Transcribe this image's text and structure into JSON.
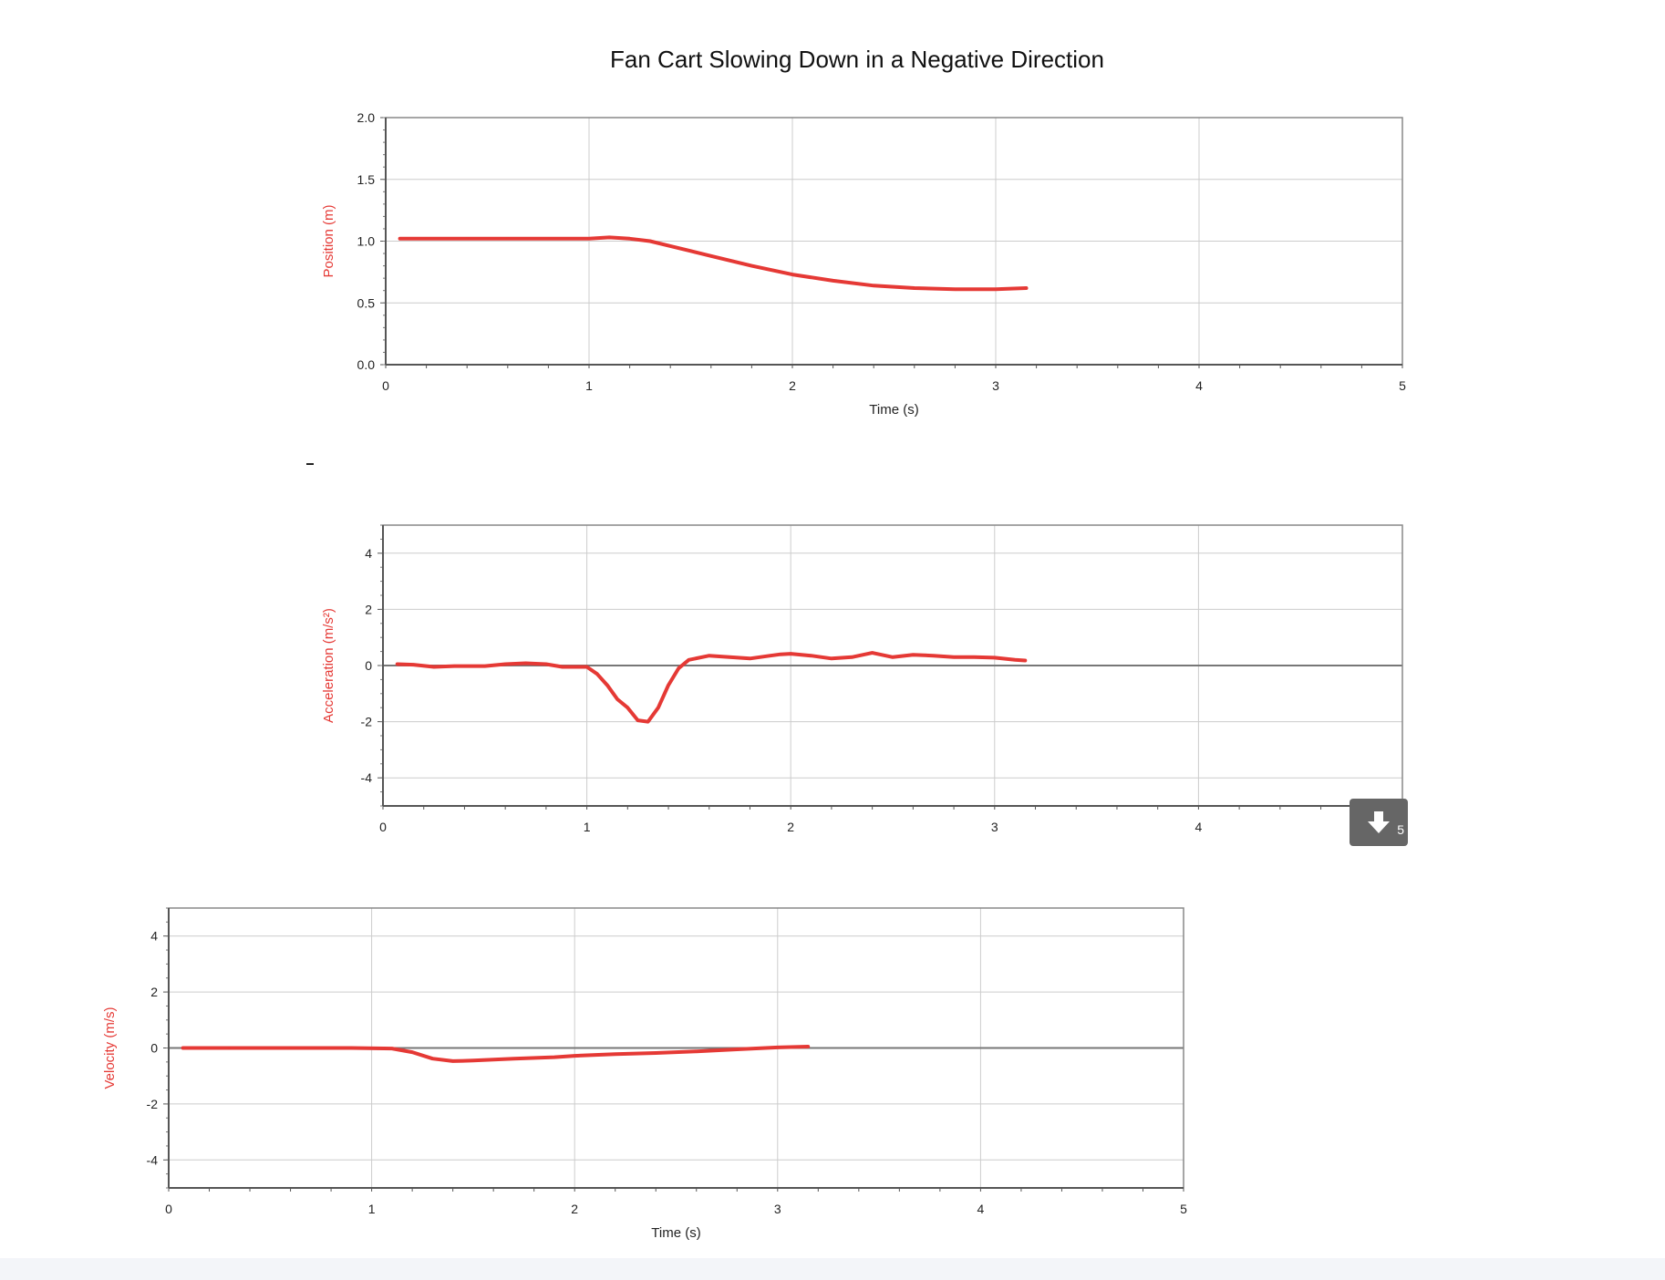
{
  "title": "Fan Cart Slowing Down in a Negative Direction",
  "colors": {
    "series": "#e53935",
    "ylabel": "#e53935",
    "grid": "#cccccc",
    "zero_line": "#777777"
  },
  "download_button": {
    "icon": "download-arrow-icon",
    "label": "5"
  },
  "chart_data": [
    {
      "type": "line",
      "name": "position",
      "title": "",
      "ylabel": "Position (m)",
      "xlabel": "Time (s)",
      "xlim": [
        0,
        5
      ],
      "ylim": [
        0,
        2
      ],
      "x_ticks": [
        "0",
        "1",
        "2",
        "3",
        "4",
        "5"
      ],
      "y_ticks": [
        "0.0",
        "0.5",
        "1.0",
        "1.5",
        "2.0"
      ],
      "y_tick_values": [
        0,
        0.5,
        1,
        1.5,
        2
      ],
      "grid": true,
      "zero_line": false,
      "series": [
        {
          "x": [
            0.07,
            0.2,
            0.4,
            0.6,
            0.8,
            1.0,
            1.1,
            1.2,
            1.3,
            1.4,
            1.5,
            1.6,
            1.8,
            2.0,
            2.2,
            2.4,
            2.6,
            2.8,
            3.0,
            3.15
          ],
          "y": [
            1.02,
            1.02,
            1.02,
            1.02,
            1.02,
            1.02,
            1.03,
            1.02,
            1.0,
            0.96,
            0.92,
            0.88,
            0.8,
            0.73,
            0.68,
            0.64,
            0.62,
            0.61,
            0.61,
            0.62
          ]
        }
      ]
    },
    {
      "type": "line",
      "name": "acceleration",
      "title": "",
      "ylabel": "Acceleration (m/s²)",
      "xlabel": "",
      "xlim": [
        0,
        5
      ],
      "ylim": [
        -5,
        5
      ],
      "x_ticks": [
        "0",
        "1",
        "2",
        "3",
        "4",
        "5"
      ],
      "y_ticks": [
        "-4",
        "-2",
        "0",
        "2",
        "4"
      ],
      "y_tick_values": [
        -4,
        -2,
        0,
        2,
        4
      ],
      "grid": true,
      "zero_line": true,
      "series": [
        {
          "x": [
            0.07,
            0.15,
            0.25,
            0.35,
            0.5,
            0.6,
            0.7,
            0.8,
            0.88,
            0.95,
            1.0,
            1.05,
            1.1,
            1.15,
            1.2,
            1.25,
            1.3,
            1.35,
            1.4,
            1.45,
            1.5,
            1.6,
            1.7,
            1.8,
            1.9,
            1.95,
            2.0,
            2.1,
            2.2,
            2.3,
            2.4,
            2.5,
            2.6,
            2.7,
            2.8,
            2.9,
            3.0,
            3.1,
            3.15
          ],
          "y": [
            0.05,
            0.03,
            -0.05,
            -0.02,
            -0.02,
            0.05,
            0.08,
            0.05,
            -0.05,
            -0.05,
            -0.05,
            -0.3,
            -0.7,
            -1.2,
            -1.5,
            -1.95,
            -2.0,
            -1.5,
            -0.7,
            -0.1,
            0.2,
            0.35,
            0.3,
            0.25,
            0.35,
            0.4,
            0.42,
            0.35,
            0.25,
            0.3,
            0.45,
            0.3,
            0.38,
            0.35,
            0.3,
            0.3,
            0.28,
            0.2,
            0.18
          ]
        }
      ]
    },
    {
      "type": "line",
      "name": "velocity",
      "title": "",
      "ylabel": "Velocity (m/s)",
      "xlabel": "Time (s)",
      "xlim": [
        0,
        5
      ],
      "ylim": [
        -5,
        5
      ],
      "x_ticks": [
        "0",
        "1",
        "2",
        "3",
        "4",
        "5"
      ],
      "y_ticks": [
        "-4",
        "-2",
        "0",
        "2",
        "4"
      ],
      "y_tick_values": [
        -4,
        -2,
        0,
        2,
        4
      ],
      "grid": true,
      "zero_line": true,
      "series": [
        {
          "x": [
            0.07,
            0.3,
            0.6,
            0.9,
            1.1,
            1.2,
            1.3,
            1.4,
            1.5,
            1.7,
            1.9,
            2.0,
            2.2,
            2.4,
            2.6,
            2.8,
            3.0,
            3.15
          ],
          "y": [
            0.0,
            0.0,
            0.0,
            0.0,
            -0.02,
            -0.15,
            -0.38,
            -0.47,
            -0.45,
            -0.38,
            -0.33,
            -0.28,
            -0.22,
            -0.18,
            -0.12,
            -0.05,
            0.02,
            0.05
          ]
        }
      ]
    }
  ]
}
